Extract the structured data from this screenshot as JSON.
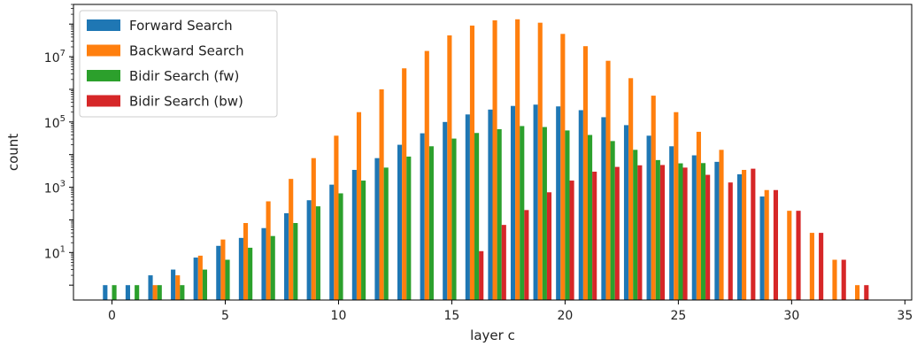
{
  "chart_data": {
    "type": "bar",
    "xlabel": "layer c",
    "ylabel": "count",
    "yscale": "log",
    "xlim": [
      -1.7,
      35.3
    ],
    "ylim": [
      0.35,
      400000000
    ],
    "x_ticks": [
      0,
      5,
      10,
      15,
      20,
      25,
      30,
      35
    ],
    "y_ticks": [
      {
        "value": 10,
        "base": "10",
        "exp": "1"
      },
      {
        "value": 1000,
        "base": "10",
        "exp": "3"
      },
      {
        "value": 100000,
        "base": "10",
        "exp": "5"
      },
      {
        "value": 10000000,
        "base": "10",
        "exp": "7"
      }
    ],
    "legend_position": "top-left",
    "grid": false,
    "series": [
      {
        "name": "Forward Search",
        "color": "#1f77b4",
        "values": [
          1,
          1,
          2,
          3,
          7,
          16,
          28,
          56,
          160,
          400,
          1200,
          3400,
          7800,
          20000,
          45000,
          100000,
          170000,
          240000,
          310000,
          340000,
          300000,
          230000,
          140000,
          80000,
          38000,
          18000,
          9500,
          6000,
          2500,
          520,
          null,
          null,
          null,
          null
        ]
      },
      {
        "name": "Backward Search",
        "color": "#ff7f0e",
        "values": [
          null,
          null,
          1,
          2,
          8,
          25,
          80,
          370,
          1800,
          7800,
          38000,
          200000,
          1000000,
          4400000,
          15000000,
          45000000,
          90000000,
          130000000,
          140000000,
          110000000,
          50000000,
          21000000,
          7500000,
          2200000,
          640000,
          200000,
          50000,
          14000,
          3400,
          820,
          190,
          40,
          6,
          1
        ]
      },
      {
        "name": "Bidir Search (fw)",
        "color": "#2ca02c",
        "values": [
          1,
          1,
          1,
          1,
          3,
          6,
          14,
          32,
          80,
          260,
          650,
          1600,
          4000,
          8700,
          18000,
          31000,
          46000,
          60000,
          75000,
          70000,
          55000,
          40000,
          26000,
          14000,
          6800,
          5400,
          5500,
          null,
          null,
          null,
          null,
          null,
          null,
          null
        ]
      },
      {
        "name": "Bidir Search (bw)",
        "color": "#d62728",
        "values": [
          null,
          null,
          null,
          null,
          null,
          null,
          null,
          null,
          null,
          null,
          null,
          null,
          null,
          null,
          null,
          null,
          11,
          70,
          200,
          700,
          1600,
          3000,
          4200,
          4700,
          4800,
          4000,
          2400,
          1400,
          3700,
          820,
          190,
          40,
          6,
          1
        ]
      }
    ]
  }
}
